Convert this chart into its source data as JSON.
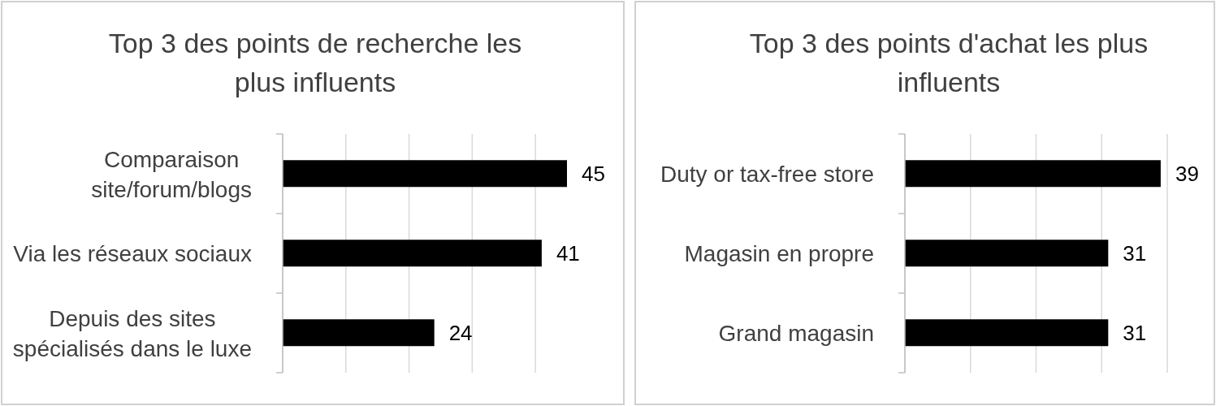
{
  "chart_data": [
    {
      "type": "bar",
      "orientation": "horizontal",
      "title": "Top 3 des points de recherche les plus influents",
      "categories": [
        "Comparaison site/forum/blogs",
        "Via les réseaux sociaux",
        "Depuis des sites spécialisés dans le luxe"
      ],
      "values": [
        45,
        41,
        24
      ],
      "color": "#000000",
      "xlim": [
        0,
        45
      ],
      "xticks": [
        {
          "value": 0,
          "label": null
        },
        {
          "value": 10,
          "label": null
        },
        {
          "value": 20,
          "label": null
        },
        {
          "value": 30,
          "label": null
        },
        {
          "value": 40,
          "label": null
        }
      ],
      "grid": "x",
      "tick_labels": "y",
      "data_labels": true
    },
    {
      "type": "bar",
      "orientation": "horizontal",
      "title": "Top 3 des points d'achat les plus influents",
      "categories": [
        "Duty or tax-free store",
        "Magasin en propre",
        "Grand magasin"
      ],
      "values": [
        39,
        31,
        31
      ],
      "color": "#000000",
      "xlim": [
        0,
        40
      ],
      "xticks": [
        {
          "value": 0,
          "label": null
        },
        {
          "value": 10,
          "label": null
        },
        {
          "value": 20,
          "label": null
        },
        {
          "value": 30,
          "label": null
        },
        {
          "value": 40,
          "label": null
        }
      ],
      "grid": "x",
      "tick_labels": "y",
      "data_labels": true
    }
  ]
}
